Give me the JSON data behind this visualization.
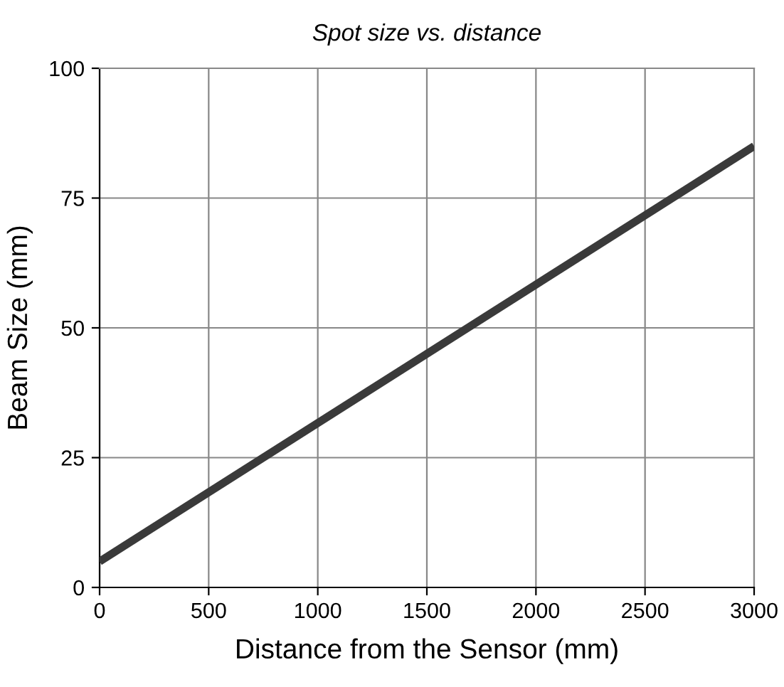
{
  "chart_data": {
    "type": "line",
    "title": "Spot size vs. distance",
    "xlabel": "Distance from the Sensor (mm)",
    "ylabel": "Beam Size (mm)",
    "x": [
      0,
      3000
    ],
    "series": [
      {
        "color": "#3a3a3a",
        "values": [
          5,
          85
        ]
      }
    ],
    "xlim": [
      0,
      3000
    ],
    "xticks": [
      0,
      500,
      1000,
      1500,
      2000,
      2500,
      3000
    ],
    "ylim": [
      0,
      100
    ],
    "yticks": [
      0,
      25,
      50,
      75,
      100
    ],
    "grid": true,
    "line_style": "solid"
  }
}
